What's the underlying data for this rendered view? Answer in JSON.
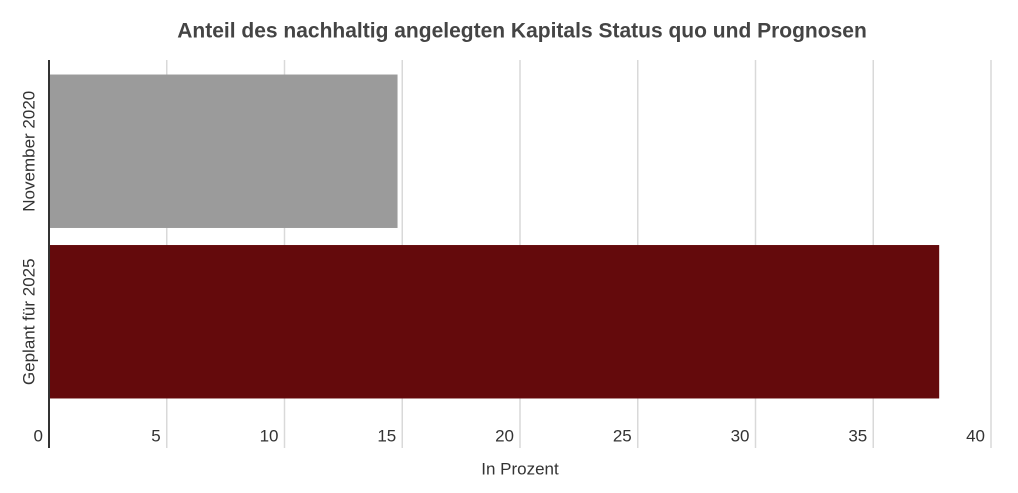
{
  "chart_data": {
    "type": "bar",
    "orientation": "horizontal",
    "title": "Anteil des nachhaltig angelegten Kapitals Status quo und Prognosen",
    "categories": [
      "November 2020",
      "Geplant für 2025"
    ],
    "values": [
      14.8,
      37.8
    ],
    "colors": [
      "#9b9b9b",
      "#640a0c"
    ],
    "xlabel": "In Prozent",
    "xlim": [
      0,
      40
    ],
    "xticks": [
      0,
      5,
      10,
      15,
      20,
      25,
      30,
      35,
      40
    ],
    "grid": true
  }
}
